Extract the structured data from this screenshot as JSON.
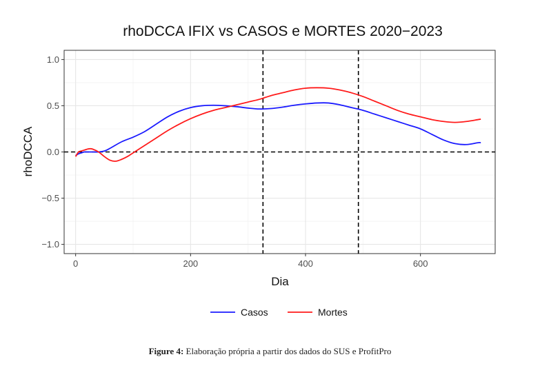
{
  "chart_data": {
    "type": "line",
    "title": "rhoDCCA IFIX vs CASOS e MORTES 2020−2023",
    "xlabel": "Dia",
    "ylabel": "rhoDCCA",
    "xlim": [
      -20,
      730
    ],
    "ylim": [
      -1.1,
      1.1
    ],
    "x_ticks": [
      0,
      200,
      400,
      600
    ],
    "x_tick_labels": [
      "0",
      "200",
      "400",
      "600"
    ],
    "y_ticks": [
      -1.0,
      -0.5,
      0.0,
      0.5,
      1.0
    ],
    "y_tick_labels": [
      "−1.0",
      "−0.5",
      "0.0",
      "0.5",
      "1.0"
    ],
    "grid": true,
    "legend_position": "bottom",
    "vlines_dashed": [
      326,
      492
    ],
    "hline_dashed": 0.0,
    "series": [
      {
        "name": "Casos",
        "color": "#1a1aff",
        "x": [
          0,
          5,
          10,
          15,
          20,
          30,
          40,
          50,
          60,
          80,
          100,
          120,
          140,
          160,
          180,
          200,
          220,
          240,
          260,
          280,
          300,
          320,
          340,
          360,
          380,
          400,
          420,
          440,
          460,
          480,
          500,
          520,
          540,
          560,
          580,
          600,
          620,
          640,
          660,
          680,
          700,
          705
        ],
        "y": [
          -0.04,
          -0.02,
          -0.01,
          0.0,
          0.0,
          0.0,
          0.0,
          0.01,
          0.04,
          0.11,
          0.16,
          0.22,
          0.3,
          0.38,
          0.44,
          0.48,
          0.5,
          0.505,
          0.5,
          0.49,
          0.475,
          0.465,
          0.47,
          0.485,
          0.505,
          0.52,
          0.53,
          0.53,
          0.51,
          0.48,
          0.45,
          0.41,
          0.37,
          0.33,
          0.29,
          0.25,
          0.19,
          0.13,
          0.09,
          0.08,
          0.1,
          0.1
        ]
      },
      {
        "name": "Mortes",
        "color": "#ff1a1a",
        "x": [
          0,
          5,
          10,
          15,
          20,
          25,
          30,
          40,
          50,
          60,
          70,
          80,
          90,
          100,
          120,
          140,
          160,
          180,
          200,
          220,
          240,
          260,
          280,
          300,
          320,
          340,
          360,
          380,
          400,
          420,
          440,
          460,
          480,
          500,
          520,
          540,
          560,
          580,
          600,
          620,
          640,
          660,
          680,
          700,
          705
        ],
        "y": [
          -0.05,
          0.0,
          0.01,
          0.02,
          0.03,
          0.035,
          0.03,
          0.0,
          -0.05,
          -0.09,
          -0.1,
          -0.08,
          -0.05,
          -0.01,
          0.07,
          0.15,
          0.23,
          0.3,
          0.36,
          0.41,
          0.45,
          0.48,
          0.51,
          0.54,
          0.57,
          0.61,
          0.64,
          0.67,
          0.69,
          0.695,
          0.69,
          0.67,
          0.64,
          0.6,
          0.55,
          0.5,
          0.45,
          0.41,
          0.38,
          0.35,
          0.33,
          0.32,
          0.33,
          0.35,
          0.355
        ]
      }
    ]
  },
  "caption": {
    "label": "Figure 4:",
    "text": " Elaboração própria a partir dos dados do SUS e ProfitPro"
  }
}
